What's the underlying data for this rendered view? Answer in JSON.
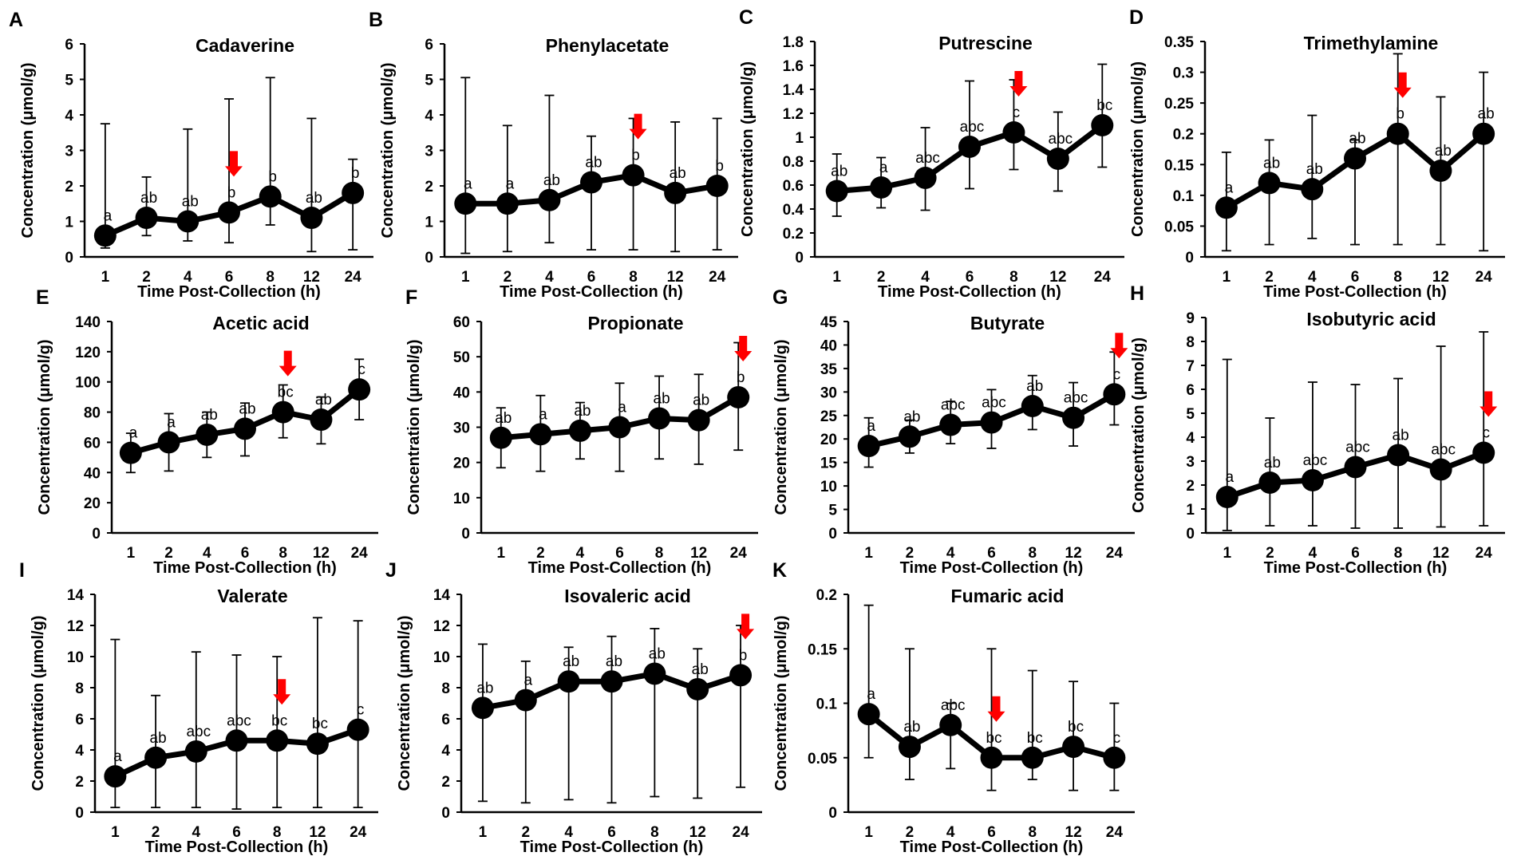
{
  "figure": {
    "x_tick_labels": [
      "1",
      "2",
      "4",
      "6",
      "8",
      "12",
      "24"
    ],
    "xlabel": "Time Post-Collection (h)",
    "ylabel": "Concentration (μmol/g)",
    "line_color": "#000000",
    "arrow_color": "#ff0000"
  },
  "chart_data": [
    {
      "panel": "A",
      "type": "line",
      "title": "Cadaverine",
      "xlabel": "Time Post-Collection (h)",
      "ylabel": "Concentration (μmol/g)",
      "categories": [
        "1",
        "2",
        "4",
        "6",
        "8",
        "12",
        "24"
      ],
      "values": [
        0.6,
        1.1,
        1.0,
        1.25,
        1.7,
        1.1,
        1.8
      ],
      "error_upper": [
        3.75,
        2.25,
        3.6,
        4.45,
        5.05,
        3.9,
        2.75
      ],
      "error_lower": [
        0.25,
        0.6,
        0.45,
        0.4,
        0.9,
        0.15,
        0.2
      ],
      "significance_letters": [
        "a",
        "ab",
        "ab",
        "b",
        "b",
        "ab",
        "b"
      ],
      "y_ticks": [
        "0",
        "1",
        "2",
        "3",
        "4",
        "5",
        "6"
      ],
      "ylim": [
        0,
        6
      ],
      "arrow_at": "6"
    },
    {
      "panel": "B",
      "type": "line",
      "title": "Phenylacetate",
      "xlabel": "Time Post-Collection (h)",
      "ylabel": "Concentration (μmol/g)",
      "categories": [
        "1",
        "2",
        "4",
        "6",
        "8",
        "12",
        "24"
      ],
      "values": [
        1.5,
        1.5,
        1.6,
        2.1,
        2.3,
        1.8,
        2.0
      ],
      "error_upper": [
        5.05,
        3.7,
        4.55,
        3.4,
        3.9,
        3.8,
        3.9
      ],
      "error_lower": [
        0.1,
        0.15,
        0.4,
        0.2,
        0.2,
        0.15,
        0.2
      ],
      "significance_letters": [
        "a",
        "a",
        "ab",
        "ab",
        "b",
        "ab",
        "b"
      ],
      "y_ticks": [
        "0",
        "1",
        "2",
        "3",
        "4",
        "5",
        "6"
      ],
      "ylim": [
        0,
        6
      ],
      "arrow_at": "8"
    },
    {
      "panel": "C",
      "type": "line",
      "title": "Putrescine",
      "xlabel": "Time Post-Collection (h)",
      "ylabel": "Concentration (μmol/g)",
      "categories": [
        "1",
        "2",
        "4",
        "6",
        "8",
        "12",
        "24"
      ],
      "values": [
        0.55,
        0.58,
        0.66,
        0.92,
        1.04,
        0.82,
        1.1
      ],
      "error_upper": [
        0.86,
        0.83,
        1.08,
        1.47,
        1.48,
        1.21,
        1.61
      ],
      "error_lower": [
        0.34,
        0.41,
        0.39,
        0.57,
        0.73,
        0.55,
        0.75
      ],
      "significance_letters": [
        "ab",
        "a",
        "abc",
        "abc",
        "c",
        "abc",
        "bc"
      ],
      "y_ticks": [
        "0",
        "0.2",
        "0.4",
        "0.6",
        "0.8",
        "1",
        "1.2",
        "1.4",
        "1.6",
        "1.8"
      ],
      "ylim": [
        0,
        1.8
      ],
      "arrow_at": "8"
    },
    {
      "panel": "D",
      "type": "line",
      "title": "Trimethylamine",
      "xlabel": "Time Post-Collection (h)",
      "ylabel": "Concentration (μmol/g)",
      "categories": [
        "1",
        "2",
        "4",
        "6",
        "8",
        "12",
        "24"
      ],
      "values": [
        0.08,
        0.12,
        0.11,
        0.16,
        0.2,
        0.14,
        0.2
      ],
      "error_upper": [
        0.17,
        0.19,
        0.23,
        0.19,
        0.33,
        0.26,
        0.3
      ],
      "error_lower": [
        0.01,
        0.02,
        0.03,
        0.02,
        0.02,
        0.02,
        0.01
      ],
      "significance_letters": [
        "a",
        "ab",
        "ab",
        "ab",
        "b",
        "ab",
        "ab"
      ],
      "y_ticks": [
        "0",
        "0.05",
        "0.1",
        "0.15",
        "0.2",
        "0.25",
        "0.3",
        "0.35"
      ],
      "ylim": [
        0,
        0.35
      ],
      "arrow_at": "8"
    },
    {
      "panel": "E",
      "type": "line",
      "title": "Acetic acid",
      "xlabel": "Time Post-Collection (h)",
      "ylabel": "Concentration (μmol/g)",
      "categories": [
        "1",
        "2",
        "4",
        "6",
        "8",
        "12",
        "24"
      ],
      "values": [
        53,
        60,
        65,
        69,
        80,
        75,
        95
      ],
      "error_upper": [
        66,
        79,
        80,
        86,
        98,
        90,
        115
      ],
      "error_lower": [
        40,
        41,
        50,
        51,
        63,
        59,
        75
      ],
      "significance_letters": [
        "a",
        "a",
        "ab",
        "ab",
        "bc",
        "ab",
        "c"
      ],
      "y_ticks": [
        "0",
        "20",
        "40",
        "60",
        "80",
        "100",
        "120",
        "140"
      ],
      "ylim": [
        0,
        140
      ],
      "arrow_at": "8"
    },
    {
      "panel": "F",
      "type": "line",
      "title": "Propionate",
      "xlabel": "Time Post-Collection (h)",
      "ylabel": "Concentration (μmol/g)",
      "categories": [
        "1",
        "2",
        "4",
        "6",
        "8",
        "12",
        "24"
      ],
      "values": [
        27,
        28,
        29,
        30,
        32.5,
        32,
        38.5
      ],
      "error_upper": [
        35.5,
        39,
        37,
        42.5,
        44.5,
        45,
        54
      ],
      "error_lower": [
        18.5,
        17.5,
        21,
        17.5,
        21,
        19.5,
        23.5
      ],
      "significance_letters": [
        "ab",
        "a",
        "ab",
        "a",
        "ab",
        "ab",
        "b"
      ],
      "y_ticks": [
        "0",
        "10",
        "20",
        "30",
        "40",
        "50",
        "60"
      ],
      "ylim": [
        0,
        60
      ],
      "arrow_at": "24"
    },
    {
      "panel": "G",
      "type": "line",
      "title": "Butyrate",
      "xlabel": "Time Post-Collection (h)",
      "ylabel": "Concentration (μmol/g)",
      "categories": [
        "1",
        "2",
        "4",
        "6",
        "8",
        "12",
        "24"
      ],
      "values": [
        18.5,
        20.5,
        23,
        23.5,
        27,
        24.5,
        29.5
      ],
      "error_upper": [
        24.5,
        24,
        28,
        30.5,
        33.5,
        32,
        38.5
      ],
      "error_lower": [
        14,
        17,
        19,
        18,
        22,
        18.5,
        23
      ],
      "significance_letters": [
        "a",
        "ab",
        "abc",
        "abc",
        "ab",
        "abc",
        "c"
      ],
      "y_ticks": [
        "0",
        "5",
        "10",
        "15",
        "20",
        "25",
        "30",
        "35",
        "40",
        "45"
      ],
      "ylim": [
        0,
        45
      ],
      "arrow_at": "24"
    },
    {
      "panel": "H",
      "type": "line",
      "title": "Isobutyric acid",
      "xlabel": "Time Post-Collection (h)",
      "ylabel": "Concentration (μmol/g)",
      "categories": [
        "1",
        "2",
        "4",
        "6",
        "8",
        "12",
        "24"
      ],
      "values": [
        1.5,
        2.1,
        2.2,
        2.75,
        3.25,
        2.65,
        3.35
      ],
      "error_upper": [
        7.25,
        4.8,
        6.3,
        6.2,
        6.45,
        7.8,
        8.4
      ],
      "error_lower": [
        0.1,
        0.3,
        0.3,
        0.2,
        0.2,
        0.25,
        0.3
      ],
      "significance_letters": [
        "a",
        "ab",
        "abc",
        "abc",
        "ab",
        "abc",
        "c"
      ],
      "y_ticks": [
        "0",
        "1",
        "2",
        "3",
        "4",
        "5",
        "6",
        "7",
        "8",
        "9"
      ],
      "ylim": [
        0,
        9
      ],
      "arrow_at": "24"
    },
    {
      "panel": "I",
      "type": "line",
      "title": "Valerate",
      "xlabel": "Time Post-Collection (h)",
      "ylabel": "Concentration (μmol/g)",
      "categories": [
        "1",
        "2",
        "4",
        "6",
        "8",
        "12",
        "24"
      ],
      "values": [
        2.3,
        3.5,
        3.9,
        4.6,
        4.6,
        4.4,
        5.3
      ],
      "error_upper": [
        11.1,
        7.5,
        10.3,
        10.1,
        10.0,
        12.5,
        12.3
      ],
      "error_lower": [
        0.3,
        0.3,
        0.3,
        0.2,
        0.3,
        0.3,
        0.3
      ],
      "significance_letters": [
        "a",
        "ab",
        "abc",
        "abc",
        "bc",
        "bc",
        "c"
      ],
      "y_ticks": [
        "0",
        "2",
        "4",
        "6",
        "8",
        "10",
        "12",
        "14"
      ],
      "ylim": [
        0,
        14
      ],
      "arrow_at": "8"
    },
    {
      "panel": "J",
      "type": "line",
      "title": "Isovaleric acid",
      "xlabel": "Time Post-Collection (h)",
      "ylabel": "Concentration (μmol/g)",
      "categories": [
        "1",
        "2",
        "4",
        "6",
        "8",
        "12",
        "24"
      ],
      "values": [
        6.7,
        7.2,
        8.4,
        8.4,
        8.9,
        7.9,
        8.8
      ],
      "error_upper": [
        10.8,
        9.7,
        10.6,
        11.3,
        11.8,
        10.5,
        12.0
      ],
      "error_lower": [
        0.7,
        0.6,
        0.8,
        0.6,
        1.0,
        0.9,
        1.6
      ],
      "significance_letters": [
        "ab",
        "a",
        "ab",
        "ab",
        "ab",
        "ab",
        "b"
      ],
      "y_ticks": [
        "0",
        "2",
        "4",
        "6",
        "8",
        "10",
        "12",
        "14"
      ],
      "ylim": [
        0,
        14
      ],
      "arrow_at": "24"
    },
    {
      "panel": "K",
      "type": "line",
      "title": "Fumaric acid",
      "xlabel": "Time Post-Collection (h)",
      "ylabel": "Concentration (μmol/g)",
      "categories": [
        "1",
        "2",
        "4",
        "6",
        "8",
        "12",
        "24"
      ],
      "values": [
        0.09,
        0.06,
        0.08,
        0.05,
        0.05,
        0.06,
        0.05
      ],
      "error_upper": [
        0.19,
        0.15,
        0.1,
        0.15,
        0.13,
        0.12,
        0.1
      ],
      "error_lower": [
        0.05,
        0.03,
        0.04,
        0.02,
        0.03,
        0.02,
        0.02
      ],
      "significance_letters": [
        "a",
        "ab",
        "abc",
        "bc",
        "bc",
        "bc",
        "c"
      ],
      "y_ticks": [
        "0",
        "0.05",
        "0.1",
        "0.15",
        "0.2"
      ],
      "ylim": [
        0,
        0.2
      ],
      "arrow_at": "6"
    }
  ]
}
